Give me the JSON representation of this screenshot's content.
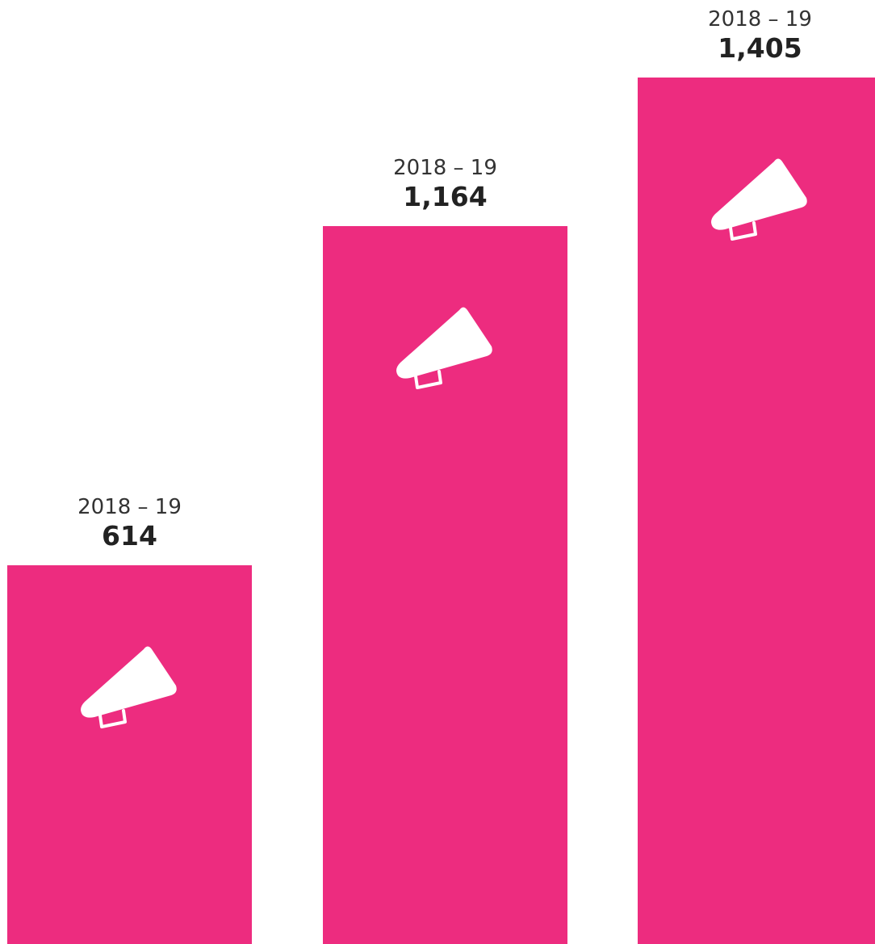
{
  "chart_data": {
    "type": "bar",
    "categories": [
      "2018 – 19",
      "2018 – 19",
      "2018 – 19"
    ],
    "values": [
      614,
      1164,
      1405
    ],
    "value_labels": [
      "614",
      "1,164",
      "1,405"
    ],
    "bar_color": "#ed2c7f",
    "icon": "megaphone-icon",
    "grid": false,
    "legend": "none"
  }
}
